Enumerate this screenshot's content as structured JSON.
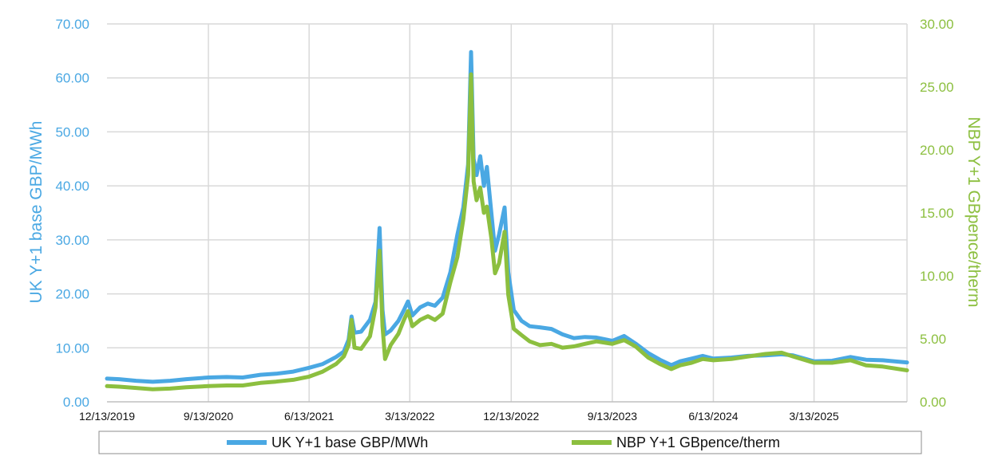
{
  "chart_data": {
    "type": "line",
    "title": "",
    "colors": {
      "uk": "#4aa8e3",
      "nbp": "#8cbf3f",
      "grid": "#d9d9d9"
    },
    "left_axis": {
      "label": "UK Y+1 base GBP/MWh",
      "ylim": [
        0,
        70
      ],
      "ticks": [
        "0.00",
        "10.00",
        "20.00",
        "30.00",
        "40.00",
        "50.00",
        "60.00",
        "70.00"
      ]
    },
    "right_axis": {
      "label": "NBP Y+1 GBpence/therm",
      "ylim": [
        0,
        30
      ],
      "ticks": [
        "0.00",
        "5.00",
        "10.00",
        "15.00",
        "20.00",
        "25.00",
        "30.00"
      ]
    },
    "x_axis": {
      "range": [
        "2019-12-13",
        "2025-11-20"
      ],
      "ticks": [
        "12/13/2019",
        "9/13/2020",
        "6/13/2021",
        "3/13/2022",
        "12/13/2022",
        "9/13/2023",
        "6/13/2024",
        "3/13/2025"
      ],
      "tick_dates": [
        "2019-12-13",
        "2020-09-13",
        "2021-06-13",
        "2022-03-13",
        "2022-12-13",
        "2023-09-13",
        "2024-06-13",
        "2025-03-13"
      ]
    },
    "grid": true,
    "legend_placement": "bottom",
    "series": [
      {
        "name": "UK Y+1 base GBP/MWh",
        "axis": "left",
        "points": [
          [
            "2019-12-13",
            4.3
          ],
          [
            "2020-01-15",
            4.2
          ],
          [
            "2020-03-01",
            3.9
          ],
          [
            "2020-04-15",
            3.7
          ],
          [
            "2020-06-01",
            3.9
          ],
          [
            "2020-07-15",
            4.2
          ],
          [
            "2020-09-13",
            4.5
          ],
          [
            "2020-11-01",
            4.6
          ],
          [
            "2020-12-15",
            4.5
          ],
          [
            "2021-02-01",
            5.0
          ],
          [
            "2021-03-15",
            5.2
          ],
          [
            "2021-05-01",
            5.6
          ],
          [
            "2021-06-13",
            6.3
          ],
          [
            "2021-07-20",
            7.0
          ],
          [
            "2021-08-25",
            8.3
          ],
          [
            "2021-09-15",
            9.3
          ],
          [
            "2021-09-28",
            11.5
          ],
          [
            "2021-10-06",
            15.8
          ],
          [
            "2021-10-14",
            12.8
          ],
          [
            "2021-11-01",
            13.0
          ],
          [
            "2021-11-25",
            15.2
          ],
          [
            "2021-12-10",
            18.5
          ],
          [
            "2021-12-21",
            32.2
          ],
          [
            "2021-12-29",
            17.0
          ],
          [
            "2022-01-05",
            12.5
          ],
          [
            "2022-01-20",
            13.2
          ],
          [
            "2022-02-10",
            15.0
          ],
          [
            "2022-02-25",
            17.0
          ],
          [
            "2022-03-08",
            18.6
          ],
          [
            "2022-03-20",
            16.0
          ],
          [
            "2022-04-10",
            17.5
          ],
          [
            "2022-05-01",
            18.2
          ],
          [
            "2022-05-20",
            17.8
          ],
          [
            "2022-06-10",
            19.3
          ],
          [
            "2022-07-01",
            24.0
          ],
          [
            "2022-07-20",
            31.0
          ],
          [
            "2022-08-05",
            36.0
          ],
          [
            "2022-08-18",
            44.0
          ],
          [
            "2022-08-26",
            64.8
          ],
          [
            "2022-09-02",
            45.0
          ],
          [
            "2022-09-10",
            42.0
          ],
          [
            "2022-09-20",
            45.5
          ],
          [
            "2022-09-30",
            40.0
          ],
          [
            "2022-10-08",
            43.5
          ],
          [
            "2022-10-20",
            35.0
          ],
          [
            "2022-10-30",
            28.0
          ],
          [
            "2022-11-10",
            31.0
          ],
          [
            "2022-11-25",
            36.0
          ],
          [
            "2022-12-05",
            24.0
          ],
          [
            "2022-12-20",
            17.0
          ],
          [
            "2023-01-10",
            15.0
          ],
          [
            "2023-02-01",
            14.0
          ],
          [
            "2023-03-01",
            13.8
          ],
          [
            "2023-04-01",
            13.5
          ],
          [
            "2023-05-01",
            12.5
          ],
          [
            "2023-06-01",
            11.8
          ],
          [
            "2023-07-01",
            12.0
          ],
          [
            "2023-08-01",
            11.9
          ],
          [
            "2023-09-13",
            11.3
          ],
          [
            "2023-10-15",
            12.2
          ],
          [
            "2023-11-15",
            10.8
          ],
          [
            "2023-12-20",
            9.0
          ],
          [
            "2024-01-20",
            7.8
          ],
          [
            "2024-02-20",
            6.8
          ],
          [
            "2024-03-15",
            7.5
          ],
          [
            "2024-04-15",
            8.0
          ],
          [
            "2024-05-15",
            8.5
          ],
          [
            "2024-06-13",
            8.0
          ],
          [
            "2024-08-01",
            8.2
          ],
          [
            "2024-09-15",
            8.5
          ],
          [
            "2024-11-01",
            8.6
          ],
          [
            "2024-12-15",
            8.8
          ],
          [
            "2025-01-15",
            8.6
          ],
          [
            "2025-03-13",
            7.5
          ],
          [
            "2025-05-01",
            7.6
          ],
          [
            "2025-06-20",
            8.3
          ],
          [
            "2025-08-01",
            7.8
          ],
          [
            "2025-09-15",
            7.7
          ],
          [
            "2025-11-20",
            7.3
          ]
        ]
      },
      {
        "name": "NBP Y+1 GBpence/therm",
        "axis": "right",
        "points": [
          [
            "2019-12-13",
            1.25
          ],
          [
            "2020-01-15",
            1.2
          ],
          [
            "2020-03-01",
            1.1
          ],
          [
            "2020-04-15",
            1.0
          ],
          [
            "2020-06-01",
            1.05
          ],
          [
            "2020-07-15",
            1.15
          ],
          [
            "2020-09-13",
            1.25
          ],
          [
            "2020-11-01",
            1.3
          ],
          [
            "2020-12-15",
            1.3
          ],
          [
            "2021-02-01",
            1.5
          ],
          [
            "2021-03-15",
            1.6
          ],
          [
            "2021-05-01",
            1.75
          ],
          [
            "2021-06-13",
            2.0
          ],
          [
            "2021-07-20",
            2.4
          ],
          [
            "2021-08-25",
            3.0
          ],
          [
            "2021-09-15",
            3.6
          ],
          [
            "2021-09-28",
            4.5
          ],
          [
            "2021-10-06",
            6.5
          ],
          [
            "2021-10-14",
            4.3
          ],
          [
            "2021-11-01",
            4.2
          ],
          [
            "2021-11-25",
            5.2
          ],
          [
            "2021-12-10",
            7.5
          ],
          [
            "2021-12-21",
            12.0
          ],
          [
            "2021-12-29",
            6.0
          ],
          [
            "2022-01-05",
            3.4
          ],
          [
            "2022-01-20",
            4.5
          ],
          [
            "2022-02-10",
            5.4
          ],
          [
            "2022-02-25",
            6.5
          ],
          [
            "2022-03-08",
            7.2
          ],
          [
            "2022-03-20",
            6.0
          ],
          [
            "2022-04-10",
            6.5
          ],
          [
            "2022-05-01",
            6.8
          ],
          [
            "2022-05-20",
            6.5
          ],
          [
            "2022-06-10",
            7.0
          ],
          [
            "2022-07-01",
            9.5
          ],
          [
            "2022-07-20",
            11.5
          ],
          [
            "2022-08-05",
            14.5
          ],
          [
            "2022-08-18",
            18.0
          ],
          [
            "2022-08-26",
            26.0
          ],
          [
            "2022-09-02",
            17.5
          ],
          [
            "2022-09-10",
            16.0
          ],
          [
            "2022-09-20",
            17.0
          ],
          [
            "2022-09-30",
            15.0
          ],
          [
            "2022-10-08",
            15.5
          ],
          [
            "2022-10-20",
            13.0
          ],
          [
            "2022-10-30",
            10.2
          ],
          [
            "2022-11-10",
            11.0
          ],
          [
            "2022-11-25",
            13.5
          ],
          [
            "2022-12-05",
            8.5
          ],
          [
            "2022-12-20",
            5.8
          ],
          [
            "2023-01-10",
            5.3
          ],
          [
            "2023-02-01",
            4.8
          ],
          [
            "2023-03-01",
            4.5
          ],
          [
            "2023-04-01",
            4.6
          ],
          [
            "2023-05-01",
            4.3
          ],
          [
            "2023-06-01",
            4.4
          ],
          [
            "2023-07-01",
            4.6
          ],
          [
            "2023-08-01",
            4.8
          ],
          [
            "2023-09-13",
            4.6
          ],
          [
            "2023-10-15",
            4.9
          ],
          [
            "2023-11-15",
            4.4
          ],
          [
            "2023-12-20",
            3.5
          ],
          [
            "2024-01-20",
            3.0
          ],
          [
            "2024-02-20",
            2.6
          ],
          [
            "2024-03-15",
            2.9
          ],
          [
            "2024-04-15",
            3.1
          ],
          [
            "2024-05-15",
            3.4
          ],
          [
            "2024-06-13",
            3.3
          ],
          [
            "2024-08-01",
            3.4
          ],
          [
            "2024-09-15",
            3.6
          ],
          [
            "2024-11-01",
            3.8
          ],
          [
            "2024-12-15",
            3.9
          ],
          [
            "2025-01-15",
            3.6
          ],
          [
            "2025-03-13",
            3.1
          ],
          [
            "2025-05-01",
            3.1
          ],
          [
            "2025-06-20",
            3.3
          ],
          [
            "2025-08-01",
            2.9
          ],
          [
            "2025-09-15",
            2.8
          ],
          [
            "2025-11-20",
            2.5
          ]
        ]
      }
    ]
  }
}
